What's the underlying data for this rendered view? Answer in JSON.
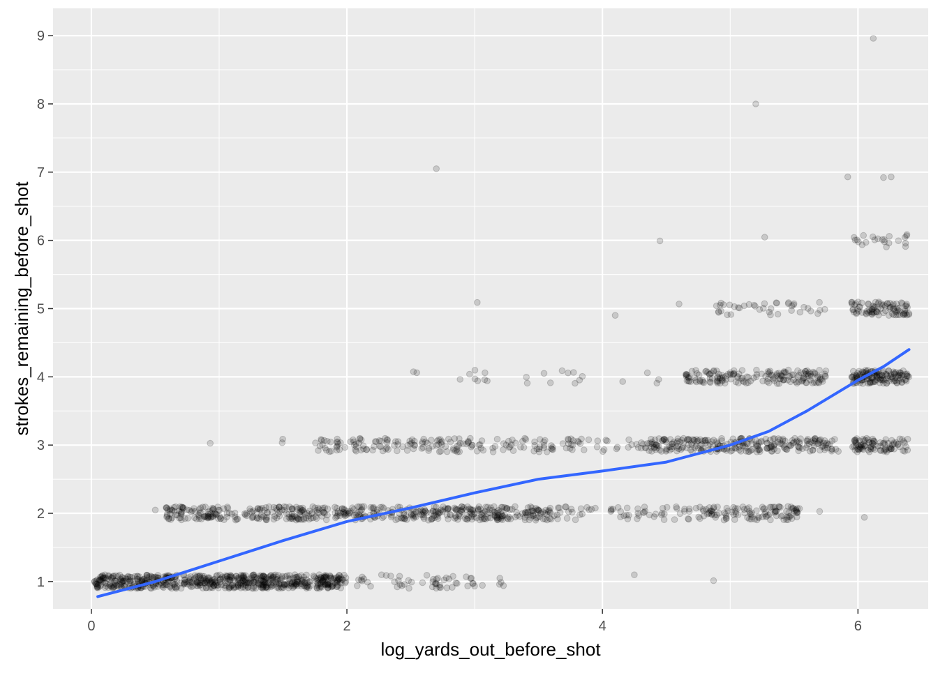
{
  "chart_data": {
    "type": "scatter",
    "title": "",
    "xlabel": "log_yards_out_before_shot",
    "ylabel": "strokes_remaining_before_shot",
    "xlim": [
      -0.3,
      6.55
    ],
    "ylim": [
      0.6,
      9.4
    ],
    "x_ticks": [
      0,
      2,
      4,
      6
    ],
    "x_tick_labels": [
      "0",
      "2",
      "4",
      "6"
    ],
    "y_ticks": [
      1,
      2,
      3,
      4,
      5,
      6,
      7,
      8,
      9
    ],
    "y_tick_labels": [
      "1",
      "2",
      "3",
      "4",
      "5",
      "6",
      "7",
      "8",
      "9"
    ],
    "grid": true,
    "legend": "none",
    "point_color": "#000000",
    "point_opacity": 0.15,
    "smooth_color": "#3366FF",
    "panel_background": "#EBEBEB",
    "bands": [
      {
        "stroke": 1,
        "x_ranges": [
          [
            0.02,
            2.0,
            650
          ],
          [
            2.0,
            3.0,
            50
          ],
          [
            3.0,
            3.25,
            5
          ],
          [
            4.25,
            4.25,
            1
          ],
          [
            4.87,
            4.87,
            1
          ]
        ]
      },
      {
        "stroke": 2,
        "x_ranges": [
          [
            0.5,
            0.5,
            1
          ],
          [
            0.58,
            3.6,
            520
          ],
          [
            3.6,
            4.0,
            20
          ],
          [
            4.0,
            4.75,
            40
          ],
          [
            4.75,
            5.55,
            110
          ],
          [
            5.7,
            5.72,
            1
          ],
          [
            6.05,
            6.05,
            1
          ]
        ]
      },
      {
        "stroke": 3,
        "x_ranges": [
          [
            0.93,
            0.93,
            1
          ],
          [
            1.45,
            1.52,
            2
          ],
          [
            1.75,
            3.65,
            160
          ],
          [
            3.65,
            4.3,
            30
          ],
          [
            4.3,
            5.8,
            260
          ],
          [
            5.8,
            5.85,
            3
          ],
          [
            5.95,
            6.4,
            90
          ]
        ]
      },
      {
        "stroke": 4,
        "x_ranges": [
          [
            2.52,
            2.65,
            2
          ],
          [
            2.85,
            3.1,
            8
          ],
          [
            3.4,
            3.85,
            10
          ],
          [
            4.15,
            4.45,
            4
          ],
          [
            4.65,
            5.75,
            170
          ],
          [
            5.95,
            6.4,
            140
          ]
        ]
      },
      {
        "stroke": 5,
        "x_ranges": [
          [
            3.02,
            3.02,
            1
          ],
          [
            4.1,
            4.1,
            1
          ],
          [
            4.6,
            4.6,
            1
          ],
          [
            4.85,
            5.75,
            40
          ],
          [
            5.95,
            6.4,
            90
          ]
        ]
      },
      {
        "stroke": 6,
        "x_ranges": [
          [
            4.45,
            4.45,
            1
          ],
          [
            5.27,
            5.27,
            1
          ],
          [
            5.95,
            6.4,
            22
          ]
        ]
      }
    ],
    "extra_points": [
      {
        "x": 2.7,
        "y": 7.05
      },
      {
        "x": 5.92,
        "y": 6.93
      },
      {
        "x": 6.2,
        "y": 6.92
      },
      {
        "x": 6.26,
        "y": 6.93
      },
      {
        "x": 5.2,
        "y": 8.0
      },
      {
        "x": 6.12,
        "y": 8.96
      }
    ],
    "smooth_line": {
      "x": [
        0.05,
        0.5,
        1.0,
        1.5,
        2.0,
        2.5,
        3.0,
        3.5,
        4.0,
        4.5,
        4.8,
        5.0,
        5.3,
        5.6,
        6.0,
        6.2,
        6.4
      ],
      "y": [
        0.78,
        1.0,
        1.3,
        1.6,
        1.88,
        2.08,
        2.3,
        2.5,
        2.62,
        2.75,
        2.9,
        3.0,
        3.2,
        3.5,
        3.95,
        4.15,
        4.4
      ]
    }
  }
}
